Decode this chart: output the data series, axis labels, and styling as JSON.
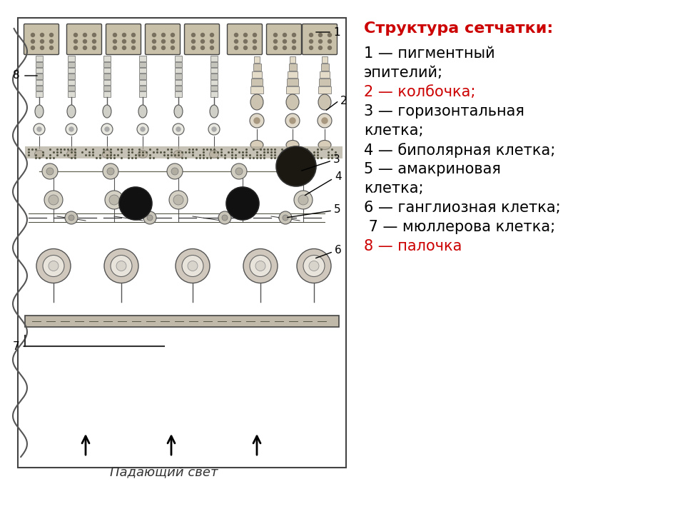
{
  "title_text": "Структура сетчатки:",
  "title_color": "#cc0000",
  "legend_lines": [
    {
      "text": "1 — пигментный",
      "color": "#000000"
    },
    {
      "text": "эпителий;",
      "color": "#000000"
    },
    {
      "text": "2 — колбочка;",
      "color": "#cc0000"
    },
    {
      "text": "3 — горизонтальная",
      "color": "#000000"
    },
    {
      "text": "клетка;",
      "color": "#000000"
    },
    {
      "text": "4 — биполярная клетка;",
      "color": "#000000"
    },
    {
      "text": "5 — амакриновая",
      "color": "#000000"
    },
    {
      "text": "клетка;",
      "color": "#000000"
    },
    {
      "text": "6 — ганглиозная клетка;",
      "color": "#000000"
    },
    {
      "text": " 7 — мюллерова клетка;",
      "color": "#000000"
    },
    {
      "text": "8 — палочка",
      "color": "#cc0000"
    }
  ],
  "bottom_label": "Падающий свет",
  "bg_color": "#ffffff",
  "font_size": 15,
  "title_font_size": 16
}
